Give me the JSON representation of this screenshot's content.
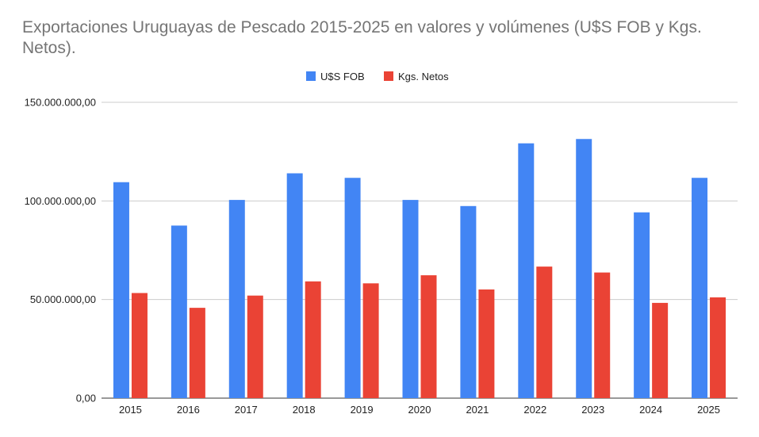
{
  "chart_data": {
    "type": "bar",
    "title": "Exportaciones Uruguayas de Pescado 2015-2025 en valores y volúmenes (U$S FOB y Kgs. Netos).",
    "xlabel": "",
    "ylabel": "",
    "categories": [
      "2015",
      "2016",
      "2017",
      "2018",
      "2019",
      "2020",
      "2021",
      "2022",
      "2023",
      "2024",
      "2025"
    ],
    "series": [
      {
        "name": "U$S FOB",
        "color": "#4285f4",
        "values": [
          109500000,
          87500000,
          100500000,
          114000000,
          111700000,
          100500000,
          97400000,
          129200000,
          131400000,
          94200000,
          111700000
        ]
      },
      {
        "name": "Kgs. Netos",
        "color": "#ea4335",
        "values": [
          53300000,
          45800000,
          52000000,
          59200000,
          58200000,
          62300000,
          55100000,
          66700000,
          63700000,
          48300000,
          51100000
        ]
      }
    ],
    "ylim": [
      0,
      150000000
    ],
    "yticks": [
      0,
      50000000,
      100000000,
      150000000
    ],
    "ytick_labels": [
      "0,00",
      "50.000.000,00",
      "100.000.000,00",
      "150.000.000,00"
    ],
    "grid": true,
    "legend_position": "top-center"
  }
}
